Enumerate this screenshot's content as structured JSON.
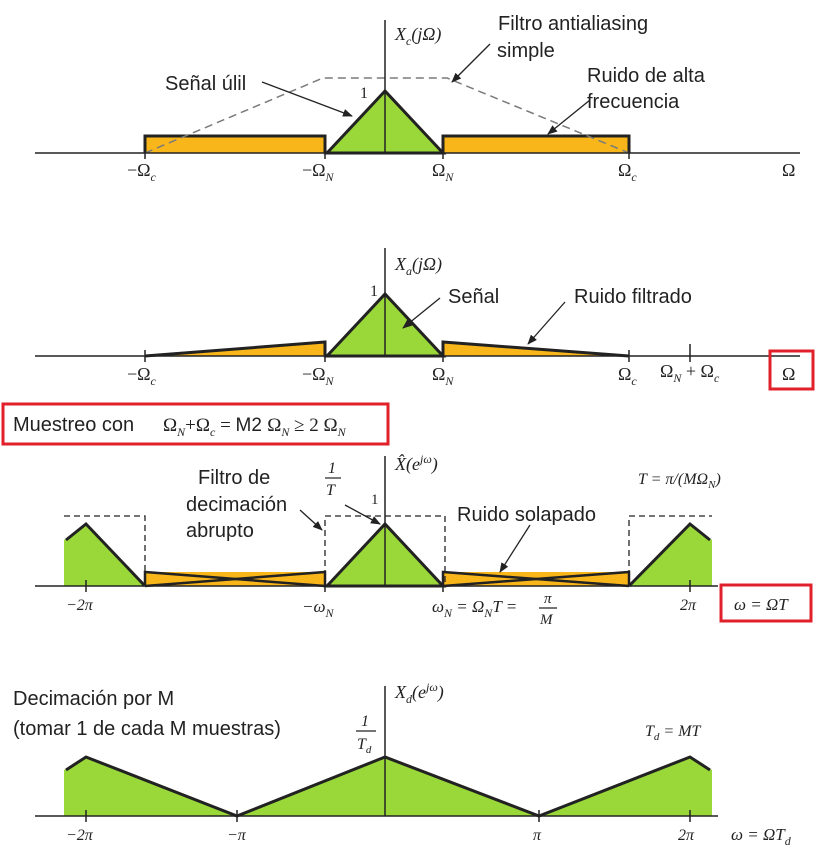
{
  "colors": {
    "signal_green": "#9ad83a",
    "noise_orange": "#f8b61a",
    "line_black": "#222222",
    "highlight_red": "#e0202a",
    "dashed_gray": "#7a7a7a"
  },
  "panel1": {
    "axis_label": "Xc(jΩ)",
    "axis_label_main": "X",
    "axis_label_sub": "c",
    "axis_label_arg": "(jΩ)",
    "peak": "1",
    "label_useful": "Señal úlil",
    "label_filter_1": "Filtro antialiasing",
    "label_filter_2": "simple",
    "label_noise_1": "Ruido de alta",
    "label_noise_2": "frecuencia",
    "ticks": [
      "−Ωc",
      "−ΩN",
      "ΩN",
      "Ωc",
      "Ω"
    ]
  },
  "panel2": {
    "axis_label_main": "X",
    "axis_label_sub": "a",
    "axis_label_arg": "(jΩ)",
    "peak": "1",
    "label_signal": "Señal",
    "label_noise": "Ruido filtrado",
    "ticks": [
      "−Ωc",
      "−ΩN",
      "ΩN",
      "Ωc",
      "ΩN + Ωc",
      "Ω"
    ]
  },
  "banner": {
    "prefix": "Muestreo con",
    "equation": "ΩN+Ωc = M2 ΩN ≥ 2 ΩN"
  },
  "panel3": {
    "axis_label": "X̂(e^jω)",
    "peak": "1",
    "frac_num": "1",
    "frac_den": "T",
    "label_filter_1": "Filtro de",
    "label_filter_2": "decimación",
    "label_filter_3": "abrupto",
    "label_noise": "Ruido solapado",
    "period_relation": "T = π/(MΩN)",
    "ticks": [
      "−2π",
      "−ωN",
      "ωN = ΩNT =",
      "π",
      "M",
      "2π",
      "ω = ΩT"
    ]
  },
  "panel4": {
    "title_1": "Decimación por M",
    "title_2": "(tomar 1 de cada M muestras)",
    "axis_label": "Xd(e^jω)",
    "frac_num": "1",
    "frac_den": "Td",
    "relation": "Td = MT",
    "ticks": [
      "−2π",
      "−π",
      "π",
      "2π",
      "ω = ΩTd"
    ]
  }
}
